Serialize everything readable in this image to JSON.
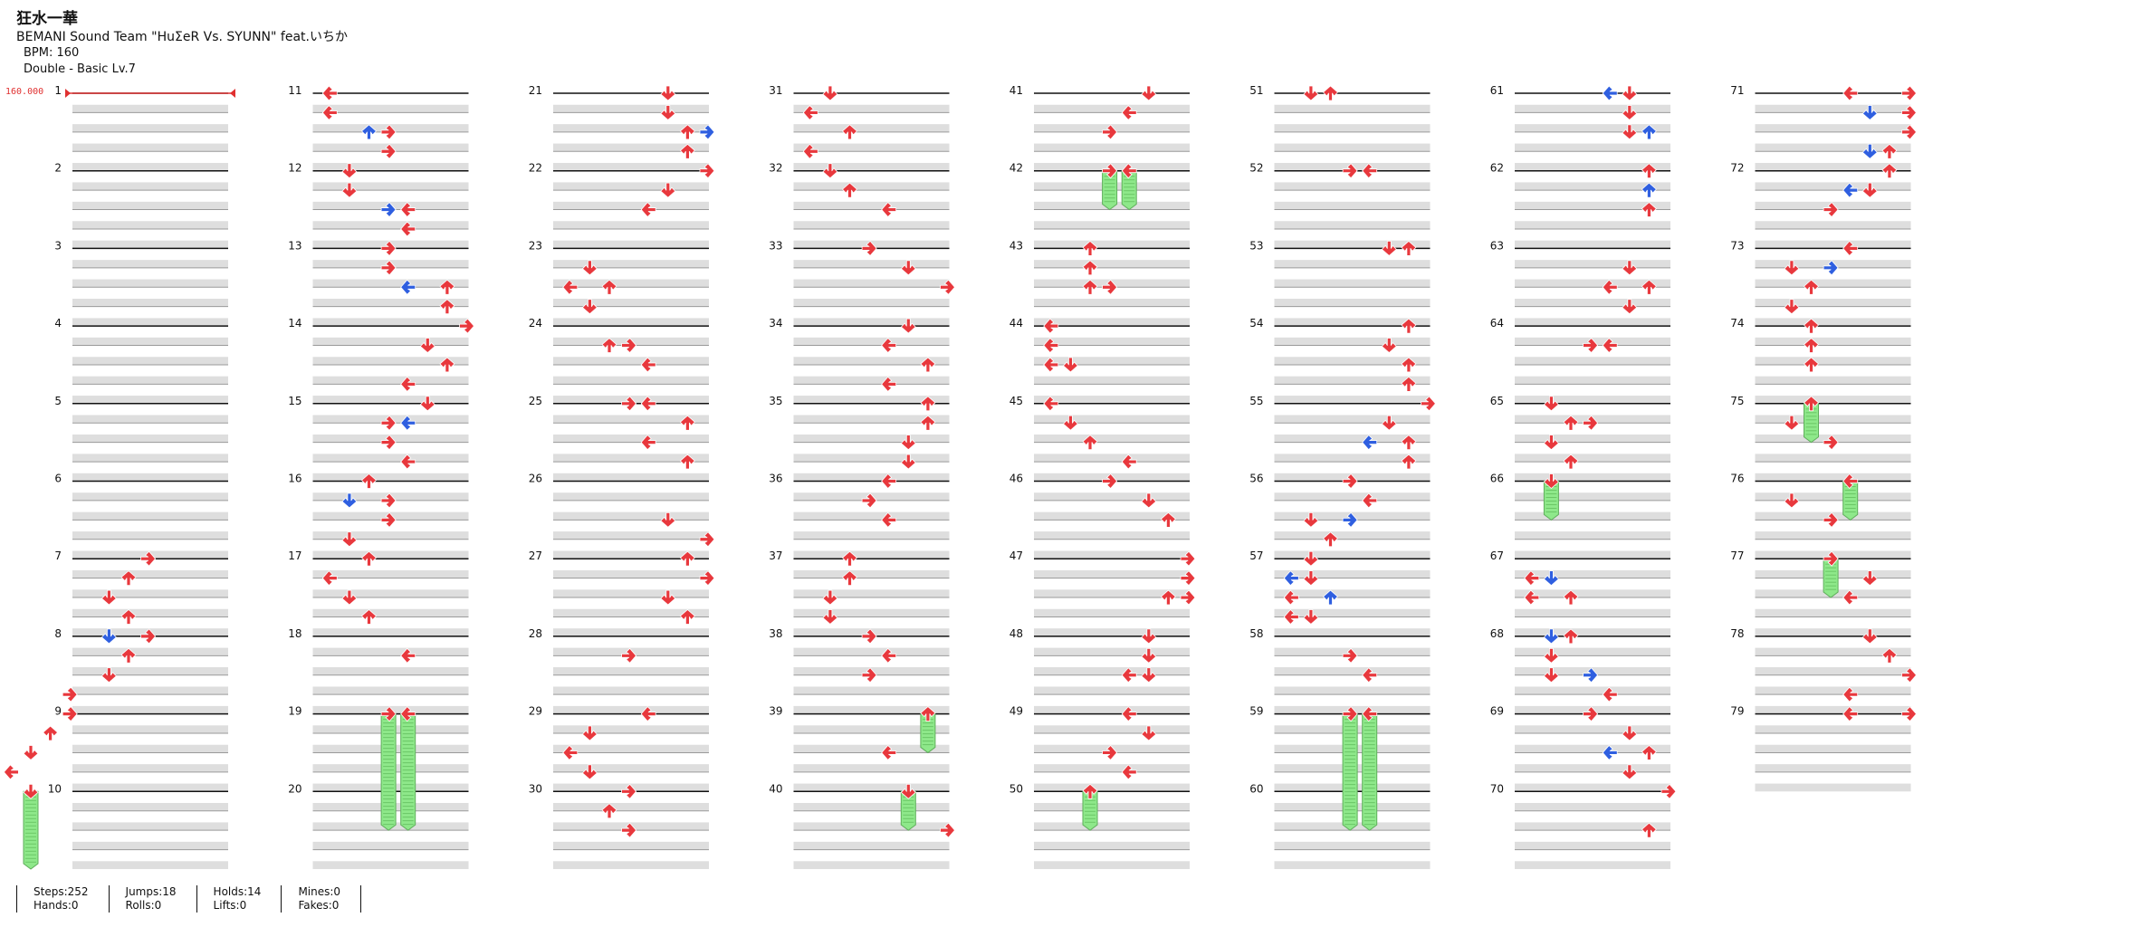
{
  "song": {
    "title": "狂水一華",
    "artist": "BEMANI Sound Team \"HuΣeR Vs. SYUNN\" feat.いちか",
    "bpm_label": "BPM: 160",
    "difficulty_label": "Double - Basic  Lv.7"
  },
  "bpm_marker": {
    "label": "160.000"
  },
  "colors": {
    "arrow": "#e8383d",
    "arrow_alt": "#2f5fe0",
    "hold": "#8ee88a",
    "row": "#dedede"
  },
  "chart": {
    "total_measures": 79,
    "measures_per_column": 10,
    "arrow_directions": [
      "left",
      "down",
      "up",
      "right"
    ],
    "measures": {
      "1": [],
      "7": [
        {
          "b": 0,
          "l": 3
        },
        {
          "b": 1,
          "l": 2
        },
        {
          "b": 2,
          "l": 1
        },
        {
          "b": 3,
          "l": 2
        }
      ],
      "8": [
        {
          "b": 0,
          "l": 3
        },
        {
          "b": 0,
          "l": 1,
          "c": "b"
        },
        {
          "b": 1,
          "l": 2
        },
        {
          "b": 2,
          "l": 1
        },
        {
          "b": 3,
          "l": -1
        }
      ],
      "9": [
        {
          "b": 0,
          "l": -1
        },
        {
          "b": 1,
          "l": -2
        },
        {
          "b": 2,
          "l": -3
        },
        {
          "b": 3,
          "l": -4
        }
      ],
      "10": [
        {
          "b": 0,
          "l": -3,
          "h": 4
        }
      ],
      "11": [
        {
          "b": 0,
          "l": 0
        },
        {
          "b": 1,
          "l": 0
        },
        {
          "b": 2,
          "l": 3
        },
        {
          "b": 2,
          "l": 2,
          "c": "b"
        },
        {
          "b": 3,
          "l": 3
        }
      ],
      "12": [
        {
          "b": 0,
          "l": 1
        },
        {
          "b": 1,
          "l": 1
        },
        {
          "b": 2,
          "l": 3,
          "c": "b"
        },
        {
          "b": 2,
          "l": 4
        },
        {
          "b": 3,
          "l": 4
        }
      ],
      "13": [
        {
          "b": 0,
          "l": 3
        },
        {
          "b": 1,
          "l": 3
        },
        {
          "b": 2,
          "l": 4,
          "c": "b"
        },
        {
          "b": 2,
          "l": 6
        },
        {
          "b": 3,
          "l": 6
        }
      ],
      "14": [
        {
          "b": 0,
          "l": 7
        },
        {
          "b": 1,
          "l": 5
        },
        {
          "b": 2,
          "l": 6
        },
        {
          "b": 3,
          "l": 4
        }
      ],
      "15": [
        {
          "b": 0,
          "l": 5
        },
        {
          "b": 1,
          "l": 3
        },
        {
          "b": 1,
          "l": 4,
          "c": "b"
        },
        {
          "b": 2,
          "l": 3
        },
        {
          "b": 3,
          "l": 4
        }
      ],
      "16": [
        {
          "b": 0,
          "l": 2
        },
        {
          "b": 1,
          "l": 3
        },
        {
          "b": 1,
          "l": 1,
          "c": "b"
        },
        {
          "b": 2,
          "l": 3
        },
        {
          "b": 3,
          "l": 1
        }
      ],
      "17": [
        {
          "b": 0,
          "l": 2
        },
        {
          "b": 1,
          "l": 0
        },
        {
          "b": 2,
          "l": 1
        },
        {
          "b": 3,
          "l": 2
        }
      ],
      "18": [
        {
          "b": 1,
          "l": 4
        }
      ],
      "19": [
        {
          "b": 0,
          "l": 3,
          "h": 6
        },
        {
          "b": 0,
          "l": 4,
          "h": 6
        }
      ],
      "21": [
        {
          "b": 0,
          "l": 5
        },
        {
          "b": 1,
          "l": 5
        },
        {
          "b": 2,
          "l": 6
        },
        {
          "b": 2,
          "l": 7,
          "c": "b"
        },
        {
          "b": 3,
          "l": 6
        }
      ],
      "22": [
        {
          "b": 0,
          "l": 7
        },
        {
          "b": 1,
          "l": 5
        },
        {
          "b": 2,
          "l": 4
        }
      ],
      "23": [
        {
          "b": 1,
          "l": 1
        },
        {
          "b": 2,
          "l": 0
        },
        {
          "b": 2,
          "l": 2
        },
        {
          "b": 3,
          "l": 1
        }
      ],
      "24": [
        {
          "b": 1,
          "l": 2
        },
        {
          "b": 1,
          "l": 3
        },
        {
          "b": 2,
          "l": 4
        }
      ],
      "25": [
        {
          "b": 0,
          "l": 3
        },
        {
          "b": 0,
          "l": 4
        },
        {
          "b": 1,
          "l": 6
        },
        {
          "b": 2,
          "l": 4
        },
        {
          "b": 3,
          "l": 6
        }
      ],
      "26": [
        {
          "b": 2,
          "l": 5
        },
        {
          "b": 3,
          "l": 7
        }
      ],
      "27": [
        {
          "b": 0,
          "l": 6
        },
        {
          "b": 1,
          "l": 7
        },
        {
          "b": 2,
          "l": 5
        },
        {
          "b": 3,
          "l": 6
        }
      ],
      "28": [
        {
          "b": 1,
          "l": 3
        }
      ],
      "29": [
        {
          "b": 0,
          "l": 4
        },
        {
          "b": 1,
          "l": 1
        },
        {
          "b": 2,
          "l": 0
        },
        {
          "b": 3,
          "l": 1
        }
      ],
      "30": [
        {
          "b": 0,
          "l": 3
        },
        {
          "b": 1,
          "l": 2
        },
        {
          "b": 2,
          "l": 3
        }
      ],
      "31": [
        {
          "b": 0,
          "l": 1
        },
        {
          "b": 1,
          "l": 0
        },
        {
          "b": 2,
          "l": 2
        },
        {
          "b": 3,
          "l": 0
        }
      ],
      "32": [
        {
          "b": 0,
          "l": 1
        },
        {
          "b": 1,
          "l": 2
        },
        {
          "b": 2,
          "l": 4
        }
      ],
      "33": [
        {
          "b": 0,
          "l": 3
        },
        {
          "b": 1,
          "l": 5
        },
        {
          "b": 2,
          "l": 7
        }
      ],
      "34": [
        {
          "b": 0,
          "l": 5
        },
        {
          "b": 1,
          "l": 4
        },
        {
          "b": 2,
          "l": 6
        },
        {
          "b": 3,
          "l": 4
        }
      ],
      "35": [
        {
          "b": 0,
          "l": 6
        },
        {
          "b": 1,
          "l": 6
        },
        {
          "b": 2,
          "l": 5
        },
        {
          "b": 3,
          "l": 5
        }
      ],
      "36": [
        {
          "b": 0,
          "l": 4
        },
        {
          "b": 1,
          "l": 3
        },
        {
          "b": 2,
          "l": 4
        }
      ],
      "37": [
        {
          "b": 0,
          "l": 2
        },
        {
          "b": 1,
          "l": 2
        },
        {
          "b": 2,
          "l": 1
        },
        {
          "b": 3,
          "l": 1
        }
      ],
      "38": [
        {
          "b": 0,
          "l": 3
        },
        {
          "b": 1,
          "l": 4
        },
        {
          "b": 2,
          "l": 3
        }
      ],
      "39": [
        {
          "b": 0,
          "l": 6,
          "h": 2
        },
        {
          "b": 2,
          "l": 4
        }
      ],
      "40": [
        {
          "b": 0,
          "l": 5,
          "h": 2
        },
        {
          "b": 2,
          "l": 7
        }
      ],
      "41": [
        {
          "b": 0,
          "l": 5
        },
        {
          "b": 1,
          "l": 4
        },
        {
          "b": 2,
          "l": 3
        }
      ],
      "42": [
        {
          "b": 0,
          "l": 3,
          "h": 2
        },
        {
          "b": 0,
          "l": 4,
          "h": 2
        }
      ],
      "43": [
        {
          "b": 0,
          "l": 2
        },
        {
          "b": 1,
          "l": 2
        },
        {
          "b": 2,
          "l": 2
        },
        {
          "b": 2,
          "l": 3
        }
      ],
      "44": [
        {
          "b": 0,
          "l": 0
        },
        {
          "b": 1,
          "l": 0
        },
        {
          "b": 2,
          "l": 0
        },
        {
          "b": 2,
          "l": 1
        }
      ],
      "45": [
        {
          "b": 0,
          "l": 0
        },
        {
          "b": 1,
          "l": 1
        },
        {
          "b": 2,
          "l": 2
        },
        {
          "b": 3,
          "l": 4
        }
      ],
      "46": [
        {
          "b": 0,
          "l": 3
        },
        {
          "b": 1,
          "l": 5
        },
        {
          "b": 2,
          "l": 6
        }
      ],
      "47": [
        {
          "b": 0,
          "l": 7
        },
        {
          "b": 1,
          "l": 7
        },
        {
          "b": 2,
          "l": 6
        },
        {
          "b": 2,
          "l": 7
        }
      ],
      "48": [
        {
          "b": 0,
          "l": 5
        },
        {
          "b": 1,
          "l": 5
        },
        {
          "b": 2,
          "l": 4
        },
        {
          "b": 2,
          "l": 5
        }
      ],
      "49": [
        {
          "b": 0,
          "l": 4
        },
        {
          "b": 1,
          "l": 5
        },
        {
          "b": 2,
          "l": 3
        },
        {
          "b": 3,
          "l": 4
        }
      ],
      "50": [
        {
          "b": 0,
          "l": 2,
          "h": 2
        }
      ],
      "51": [
        {
          "b": 0,
          "l": 1
        },
        {
          "b": 0,
          "l": 2
        }
      ],
      "52": [
        {
          "b": 0,
          "l": 3
        },
        {
          "b": 0,
          "l": 4
        }
      ],
      "53": [
        {
          "b": 0,
          "l": 5
        },
        {
          "b": 0,
          "l": 6
        }
      ],
      "54": [
        {
          "b": 0,
          "l": 6
        },
        {
          "b": 1,
          "l": 5
        },
        {
          "b": 2,
          "l": 6
        },
        {
          "b": 3,
          "l": 6
        }
      ],
      "55": [
        {
          "b": 0,
          "l": 7
        },
        {
          "b": 1,
          "l": 5
        },
        {
          "b": 2,
          "l": 6
        },
        {
          "b": 2,
          "l": 4,
          "c": "b"
        },
        {
          "b": 3,
          "l": 6
        }
      ],
      "56": [
        {
          "b": 0,
          "l": 3
        },
        {
          "b": 1,
          "l": 4
        },
        {
          "b": 2,
          "l": 1
        },
        {
          "b": 2,
          "l": 3,
          "c": "b"
        },
        {
          "b": 3,
          "l": 2
        }
      ],
      "57": [
        {
          "b": 0,
          "l": 1
        },
        {
          "b": 1,
          "l": 0,
          "c": "b"
        },
        {
          "b": 1,
          "l": 1
        },
        {
          "b": 2,
          "l": 0
        },
        {
          "b": 2,
          "l": 2,
          "c": "b"
        },
        {
          "b": 3,
          "l": 0
        },
        {
          "b": 3,
          "l": 1
        }
      ],
      "58": [
        {
          "b": 1,
          "l": 3
        },
        {
          "b": 2,
          "l": 4
        }
      ],
      "59": [
        {
          "b": 0,
          "l": 3,
          "h": 6
        },
        {
          "b": 0,
          "l": 4,
          "h": 6
        }
      ],
      "61": [
        {
          "b": 0,
          "l": 5
        },
        {
          "b": 0,
          "l": 4,
          "c": "b"
        },
        {
          "b": 1,
          "l": 5
        },
        {
          "b": 2,
          "l": 6,
          "c": "b"
        },
        {
          "b": 2,
          "l": 5
        }
      ],
      "62": [
        {
          "b": 0,
          "l": 6
        },
        {
          "b": 1,
          "l": 6,
          "c": "b"
        },
        {
          "b": 2,
          "l": 6
        }
      ],
      "63": [
        {
          "b": 1,
          "l": 5
        },
        {
          "b": 2,
          "l": 4
        },
        {
          "b": 2,
          "l": 6
        },
        {
          "b": 3,
          "l": 5
        }
      ],
      "64": [
        {
          "b": 1,
          "l": 3
        },
        {
          "b": 1,
          "l": 4
        }
      ],
      "65": [
        {
          "b": 0,
          "l": 1
        },
        {
          "b": 1,
          "l": 2
        },
        {
          "b": 1,
          "l": 3
        },
        {
          "b": 2,
          "l": 1
        },
        {
          "b": 3,
          "l": 2
        }
      ],
      "66": [
        {
          "b": 0,
          "l": 1,
          "h": 2
        }
      ],
      "67": [
        {
          "b": 1,
          "l": 0
        },
        {
          "b": 1,
          "l": 1,
          "c": "b"
        },
        {
          "b": 2,
          "l": 0
        },
        {
          "b": 2,
          "l": 2
        }
      ],
      "68": [
        {
          "b": 0,
          "l": 1,
          "c": "b"
        },
        {
          "b": 0,
          "l": 2
        },
        {
          "b": 1,
          "l": 1
        },
        {
          "b": 2,
          "l": 1
        },
        {
          "b": 2,
          "l": 3,
          "c": "b"
        },
        {
          "b": 3,
          "l": 4
        }
      ],
      "69": [
        {
          "b": 0,
          "l": 3
        },
        {
          "b": 1,
          "l": 5
        },
        {
          "b": 2,
          "l": 4,
          "c": "b"
        },
        {
          "b": 2,
          "l": 6
        },
        {
          "b": 3,
          "l": 5
        }
      ],
      "70": [
        {
          "b": 0,
          "l": 7
        },
        {
          "b": 2,
          "l": 6
        }
      ],
      "71": [
        {
          "b": 0,
          "l": 4
        },
        {
          "b": 0,
          "l": 7
        },
        {
          "b": 1,
          "l": 5,
          "c": "b"
        },
        {
          "b": 1,
          "l": 7
        },
        {
          "b": 2,
          "l": 7
        },
        {
          "b": 3,
          "l": 6
        },
        {
          "b": 3,
          "l": 5,
          "c": "b"
        }
      ],
      "72": [
        {
          "b": 0,
          "l": 6
        },
        {
          "b": 1,
          "l": 4,
          "c": "b"
        },
        {
          "b": 1,
          "l": 5
        },
        {
          "b": 2,
          "l": 3
        }
      ],
      "73": [
        {
          "b": 0,
          "l": 4
        },
        {
          "b": 1,
          "l": 1
        },
        {
          "b": 1,
          "l": 3,
          "c": "b"
        },
        {
          "b": 2,
          "l": 2
        },
        {
          "b": 3,
          "l": 1
        }
      ],
      "74": [
        {
          "b": 0,
          "l": 2
        },
        {
          "b": 1,
          "l": 2
        },
        {
          "b": 2,
          "l": 2
        }
      ],
      "75": [
        {
          "b": 0,
          "l": 2,
          "h": 2
        },
        {
          "b": 1,
          "l": 1
        },
        {
          "b": 2,
          "l": 3
        }
      ],
      "76": [
        {
          "b": 0,
          "l": 4,
          "h": 2
        },
        {
          "b": 1,
          "l": 1
        },
        {
          "b": 2,
          "l": 3
        }
      ],
      "77": [
        {
          "b": 0,
          "l": 3,
          "h": 2
        },
        {
          "b": 1,
          "l": 5
        },
        {
          "b": 2,
          "l": 4
        }
      ],
      "78": [
        {
          "b": 0,
          "l": 5
        },
        {
          "b": 1,
          "l": 6
        },
        {
          "b": 2,
          "l": 7
        },
        {
          "b": 3,
          "l": 4
        }
      ],
      "79": [
        {
          "b": 0,
          "l": 4
        },
        {
          "b": 0,
          "l": 7
        }
      ]
    }
  },
  "stats": {
    "steps": "Steps:252",
    "hands": "Hands:0",
    "jumps": "Jumps:18",
    "rolls": "Rolls:0",
    "holds": "Holds:14",
    "lifts": "Lifts:0",
    "mines": "Mines:0",
    "fakes": "Fakes:0"
  }
}
